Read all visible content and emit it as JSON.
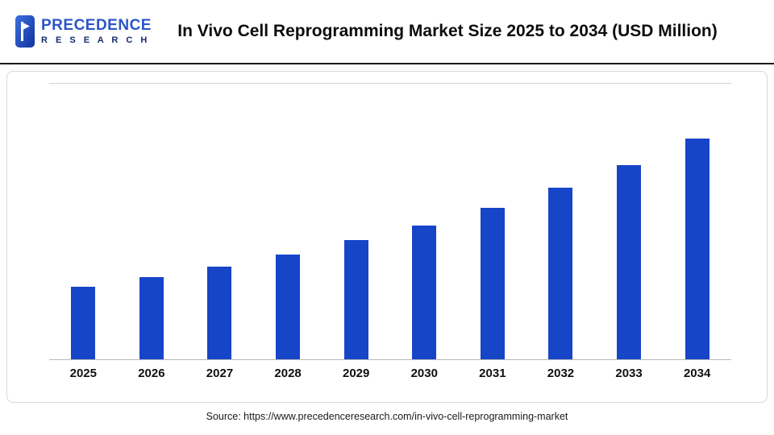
{
  "header": {
    "logo": {
      "line1": "PRECEDENCE",
      "line2": "R E S E A R C H"
    },
    "title": "In Vivo Cell Reprogramming Market Size 2025 to 2034 (USD Million)"
  },
  "chart_data": {
    "type": "bar",
    "title": "In Vivo Cell Reprogramming Market Size 2025 to 2034 (USD Million)",
    "unit": "USD Million",
    "categories": [
      "2025",
      "2026",
      "2027",
      "2028",
      "2029",
      "2030",
      "2031",
      "2032",
      "2033",
      "2034"
    ],
    "values": [
      90,
      102,
      115,
      130,
      148,
      167,
      189,
      214,
      242,
      275
    ],
    "xlabel": "",
    "ylabel": "",
    "ylim": [
      0,
      343
    ],
    "grid": false,
    "legend": false,
    "bar_color": "#1745c8"
  },
  "footer": {
    "source": "Source: https://www.precedenceresearch.com/in-vivo-cell-reprogramming-market"
  },
  "colors": {
    "bar": "#1745c8",
    "logo_primary": "#2b55c8",
    "logo_secondary": "#152a6e",
    "header_rule": "#1a1a1a"
  }
}
